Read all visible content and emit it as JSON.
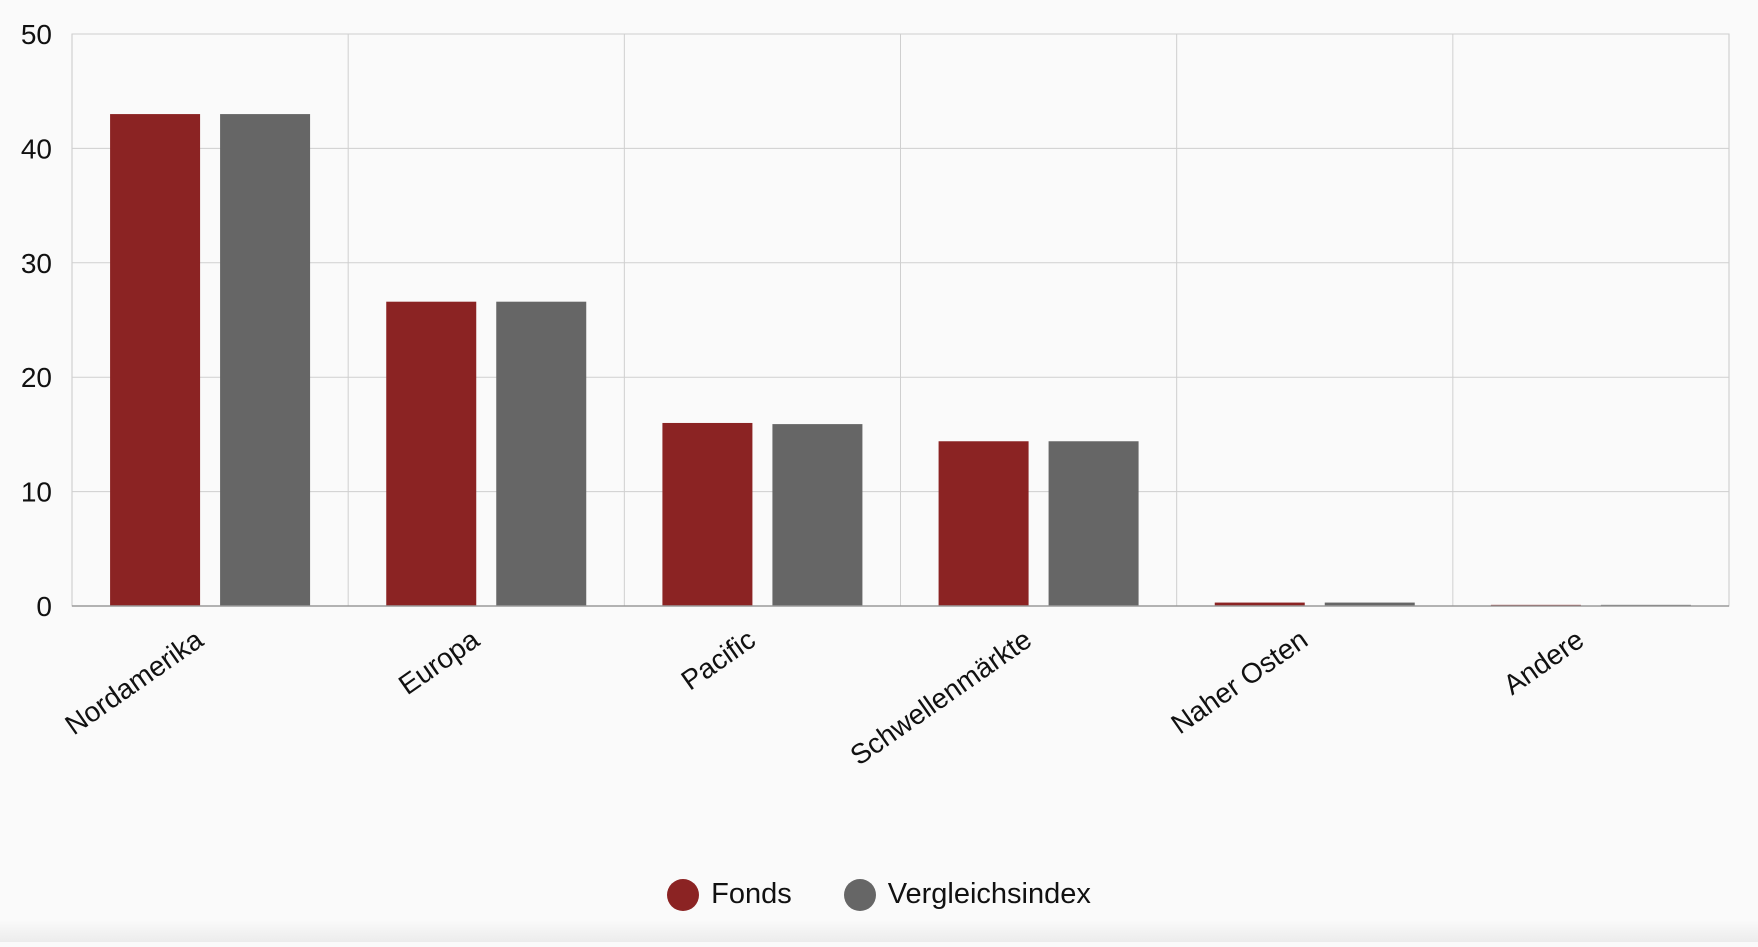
{
  "chart_data": {
    "type": "bar",
    "categories": [
      "Nordamerika",
      "Europa",
      "Pacific",
      "Schwellenmärkte",
      "Naher Osten",
      "Andere"
    ],
    "series": [
      {
        "name": "Fonds",
        "color": "#8b2323",
        "values": [
          43.0,
          26.6,
          16.0,
          14.4,
          0.3,
          0.1
        ]
      },
      {
        "name": "Vergleichsindex",
        "color": "#666666",
        "values": [
          43.0,
          26.6,
          15.9,
          14.4,
          0.3,
          0.1
        ]
      }
    ],
    "ylim": [
      0,
      50
    ],
    "yticks": [
      0,
      10,
      20,
      30,
      40,
      50
    ],
    "grid": true,
    "legend_position": "bottom-center",
    "title": "",
    "xlabel": "",
    "ylabel": ""
  }
}
